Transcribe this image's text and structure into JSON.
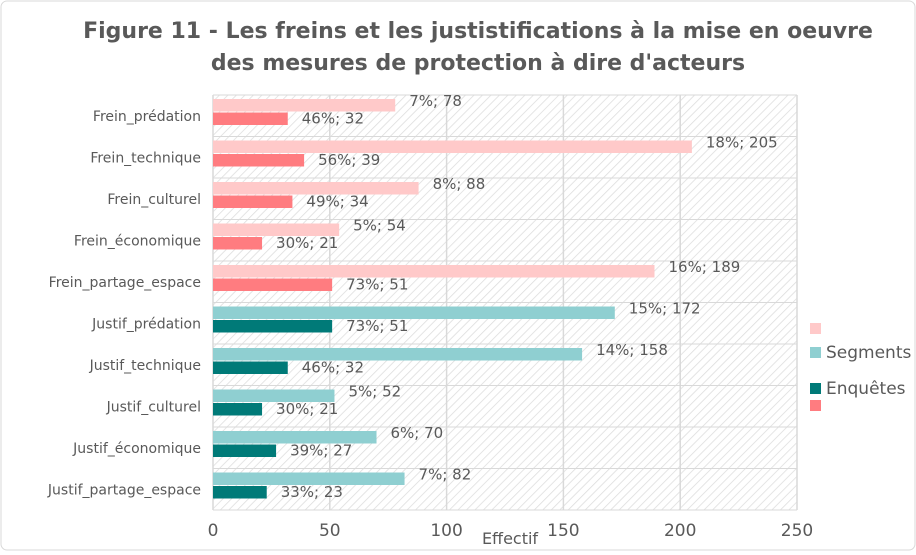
{
  "chart_data": {
    "type": "hbar",
    "title": [
      "Figure 11 - Les freins et les justistifications à la mise en oeuvre",
      "des mesures de protection à dire d'acteurs"
    ],
    "categories": [
      "Frein_prédation",
      "Frein_technique",
      "Frein_culturel",
      "Frein_économique",
      "Frein_partage_espace",
      "Justif_prédation",
      "Justif_technique",
      "Justif_culturel",
      "Justif_économique",
      "Justif_partage_espace"
    ],
    "series": [
      {
        "name": "Segments",
        "color": "#8fcfd1",
        "colors": [
          "#ffc9c9",
          "#ffc9c9",
          "#ffc9c9",
          "#ffc9c9",
          "#ffc9c9",
          "#8fcfd1",
          "#8fcfd1",
          "#8fcfd1",
          "#8fcfd1",
          "#8fcfd1"
        ],
        "values": [
          78,
          205,
          88,
          54,
          189,
          172,
          158,
          52,
          70,
          82
        ],
        "value_labels": [
          "7%; 78",
          "18%; 205",
          "8%; 88",
          "5%; 54",
          "16%; 189",
          "15%; 172",
          "14%; 158",
          "5%; 52",
          "6%; 70",
          "7%; 82"
        ]
      },
      {
        "name": "Enquêtes",
        "color": "#007a78",
        "colors": [
          "#ff7c80",
          "#ff7c80",
          "#ff7c80",
          "#ff7c80",
          "#ff7c80",
          "#007a78",
          "#007a78",
          "#007a78",
          "#007a78",
          "#007a78"
        ],
        "values": [
          32,
          39,
          34,
          21,
          51,
          51,
          32,
          21,
          27,
          23
        ],
        "value_labels": [
          "46%; 32",
          "56%; 39",
          "49%; 34",
          "30%; 21",
          "73%; 51",
          "73%; 51",
          "46%; 32",
          "30%; 21",
          "39%; 27",
          "33%; 23"
        ]
      }
    ],
    "x_label": "Effectif",
    "xlim": [
      0,
      250
    ],
    "xticks": [
      0,
      50,
      100,
      150,
      200,
      250
    ],
    "grid": true,
    "legend": "right"
  }
}
